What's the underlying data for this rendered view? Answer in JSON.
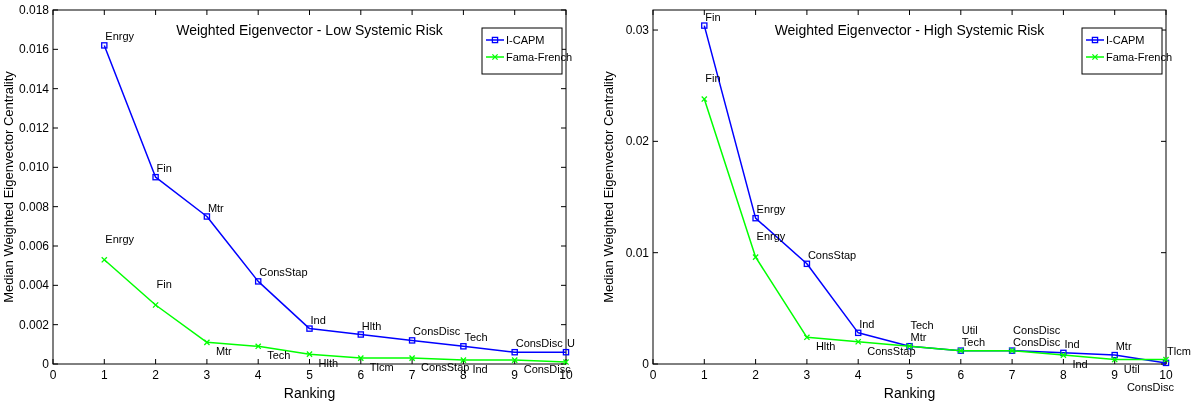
{
  "chart_data": [
    {
      "type": "line",
      "title": "Weighted Eigenvector - Low Systemic Risk",
      "xlabel": "Ranking",
      "ylabel": "Median Weighted Eigenvector Centrality",
      "x": [
        1,
        2,
        3,
        4,
        5,
        6,
        7,
        8,
        9,
        10
      ],
      "series": [
        {
          "name": "I-CAPM",
          "color": "#0000ff",
          "marker": "square",
          "values": [
            0.0162,
            0.0095,
            0.0075,
            0.0042,
            0.0018,
            0.0015,
            0.0012,
            0.0009,
            0.0006,
            0.0006
          ]
        },
        {
          "name": "Fama-French",
          "color": "#00ff00",
          "marker": "cross",
          "values": [
            0.0053,
            0.003,
            0.0011,
            0.0009,
            0.0005,
            0.0003,
            0.0003,
            0.0002,
            0.0002,
            0.0001
          ]
        }
      ],
      "xlim": [
        0,
        10
      ],
      "xticks": [
        0,
        1,
        2,
        3,
        4,
        5,
        6,
        7,
        8,
        9,
        10
      ],
      "ylim": [
        0,
        0.018
      ],
      "yticks": [
        0,
        {
          "value": 0.002,
          "label": "0.002"
        },
        {
          "value": 0.004,
          "label": "0.004"
        },
        {
          "value": 0.006,
          "label": "0.006"
        },
        {
          "value": 0.008,
          "label": "0.008"
        },
        {
          "value": 0.01,
          "label": "0.010"
        },
        {
          "value": 0.012,
          "label": "0.012"
        },
        {
          "value": 0.014,
          "label": "0.014"
        },
        {
          "value": 0.016,
          "label": "0.016"
        },
        {
          "value": 0.018,
          "label": "0.018"
        }
      ],
      "grid": false,
      "legend": "top right",
      "annotations": [
        {
          "text": "Enrgy",
          "x": 1,
          "y": 0.0162
        },
        {
          "text": "Fin",
          "x": 2,
          "y": 0.0095
        },
        {
          "text": "Mtr",
          "x": 3,
          "y": 0.0075
        },
        {
          "text": "ConsStap",
          "x": 4,
          "y": 0.0042
        },
        {
          "text": "Ind",
          "x": 5,
          "y": 0.0018
        },
        {
          "text": "Hlth",
          "x": 6,
          "y": 0.0015
        },
        {
          "text": "ConsDisc",
          "x": 7,
          "y": 0.0012
        },
        {
          "text": "Tech",
          "x": 8,
          "y": 0.0009
        },
        {
          "text": "ConsDisc",
          "x": 9,
          "y": 0.0006
        },
        {
          "text": "U",
          "x": 10,
          "y": 0.0006
        },
        {
          "text": "Enrgy",
          "x": 1,
          "y": 0.0053
        },
        {
          "text": "Fin",
          "x": 2,
          "y": 0.003
        },
        {
          "text": "Mtr",
          "x": 3,
          "y": 0.0011
        },
        {
          "text": "Tech",
          "x": 4,
          "y": 0.0009
        },
        {
          "text": "Hlth",
          "x": 5,
          "y": 0.0005
        },
        {
          "text": "Tlcm",
          "x": 6,
          "y": 0.0003
        },
        {
          "text": "ConsStap",
          "x": 7,
          "y": 0.0003
        },
        {
          "text": "Ind",
          "x": 8,
          "y": 0.0002
        },
        {
          "text": "ConsDisc",
          "x": 9,
          "y": 0.0002
        }
      ]
    },
    {
      "type": "line",
      "title": "Weighted Eigenvector - High Systemic Risk",
      "xlabel": "Ranking",
      "ylabel": "Median Weighted Eigenvector Centrality",
      "x": [
        1,
        2,
        3,
        4,
        5,
        6,
        7,
        8,
        9,
        10
      ],
      "series": [
        {
          "name": "I-CAPM",
          "color": "#0000ff",
          "marker": "square",
          "values": [
            0.0304,
            0.0131,
            0.009,
            0.0028,
            0.0016,
            0.0012,
            0.0012,
            0.001,
            0.0008,
            0.0001
          ]
        },
        {
          "name": "Fama-French",
          "color": "#00ff00",
          "marker": "cross",
          "values": [
            0.0238,
            0.0096,
            0.0024,
            0.002,
            0.0016,
            0.0012,
            0.0012,
            0.0008,
            0.0004,
            0.0004
          ]
        }
      ],
      "xlim": [
        0,
        10
      ],
      "xticks": [
        0,
        1,
        2,
        3,
        4,
        5,
        6,
        7,
        8,
        9,
        10
      ],
      "ylim": [
        0,
        0.0318
      ],
      "yticks": [
        0,
        0.01,
        0.02,
        0.03
      ],
      "grid": false,
      "legend": "top right",
      "annotations": [
        {
          "text": "Fin",
          "x": 1,
          "y": 0.0304
        },
        {
          "text": "Enrgy",
          "x": 2,
          "y": 0.0131
        },
        {
          "text": "ConsStap",
          "x": 3,
          "y": 0.009
        },
        {
          "text": "Ind",
          "x": 4,
          "y": 0.0028
        },
        {
          "text": "Mtr",
          "x": 5,
          "y": 0.0016
        },
        {
          "text": "Tech",
          "x": 6,
          "y": 0.0012
        },
        {
          "text": "ConsDisc",
          "x": 7,
          "y": 0.0012
        },
        {
          "text": "Ind",
          "x": 8,
          "y": 0.001
        },
        {
          "text": "Mtr",
          "x": 9,
          "y": 0.0008
        },
        {
          "text": "ConsDisc",
          "x": 10,
          "y": 0.0001
        },
        {
          "text": "Fin",
          "x": 1,
          "y": 0.0238
        },
        {
          "text": "Enrgy",
          "x": 2,
          "y": 0.0096
        },
        {
          "text": "Hlth",
          "x": 3,
          "y": 0.0024
        },
        {
          "text": "ConsStap",
          "x": 4,
          "y": 0.002
        },
        {
          "text": "Tech",
          "x": 5,
          "y": 0.0016
        },
        {
          "text": "Util",
          "x": 6,
          "y": 0.0012
        },
        {
          "text": "ConsDisc",
          "x": 7,
          "y": 0.0012
        },
        {
          "text": "Ind",
          "x": 8,
          "y": 0.0008
        },
        {
          "text": "Util",
          "x": 9,
          "y": 0.0004
        },
        {
          "text": "Tlcm",
          "x": 10,
          "y": 0.0004
        }
      ]
    }
  ]
}
